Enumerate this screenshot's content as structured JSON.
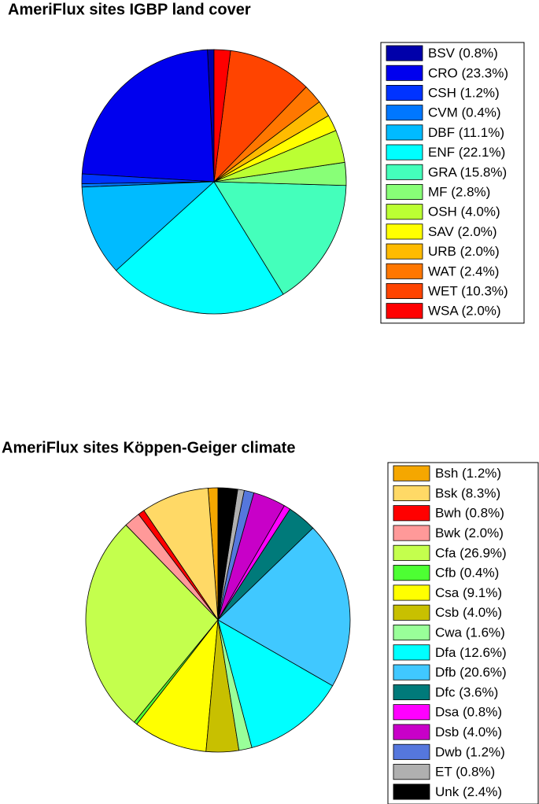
{
  "chart_data": [
    {
      "type": "pie",
      "title": "AmeriFlux sites IGBP land cover",
      "categories": [
        "BSV (0.8%)",
        "CRO (23.3%)",
        "CSH (1.2%)",
        "CVM (0.4%)",
        "DBF (11.1%)",
        "ENF (22.1%)",
        "GRA (15.8%)",
        "MF (2.8%)",
        "OSH (4.0%)",
        "SAV (2.0%)",
        "URB (2.0%)",
        "WAT (2.4%)",
        "WET (10.3%)",
        "WSA (2.0%)"
      ],
      "values": [
        0.8,
        23.3,
        1.2,
        0.4,
        11.1,
        22.1,
        15.8,
        2.8,
        4.0,
        2.0,
        2.0,
        2.4,
        10.3,
        2.0
      ],
      "colors": [
        "#0000aa",
        "#0000ee",
        "#0033ff",
        "#0077ff",
        "#00bbff",
        "#00ffff",
        "#44ffbb",
        "#88ff77",
        "#bbff33",
        "#ffff00",
        "#ffbb00",
        "#ff7700",
        "#ff4400",
        "#ff0000"
      ]
    },
    {
      "type": "pie",
      "title": "AmeriFlux sites Köppen-Geiger climate",
      "categories": [
        "Bsh (1.2%)",
        "Bsk (8.3%)",
        "Bwh (0.8%)",
        "Bwk (2.0%)",
        "Cfa (26.9%)",
        "Cfb (0.4%)",
        "Csa (9.1%)",
        "Csb (4.0%)",
        "Cwa (1.6%)",
        "Dfa (12.6%)",
        "Dfb (20.6%)",
        "Dfc (3.6%)",
        "Dsa (0.8%)",
        "Dsb (4.0%)",
        "Dwb (1.2%)",
        "ET (0.8%)",
        "Unk (2.4%)"
      ],
      "values": [
        1.2,
        8.3,
        0.8,
        2.0,
        26.9,
        0.4,
        9.1,
        4.0,
        1.6,
        12.6,
        20.6,
        3.6,
        0.8,
        4.0,
        1.2,
        0.8,
        2.4
      ],
      "colors": [
        "#f5a700",
        "#ffd966",
        "#ff0000",
        "#ff9999",
        "#c4ff4d",
        "#4dff33",
        "#ffff00",
        "#c8c000",
        "#99ff99",
        "#00ffff",
        "#40c8ff",
        "#007a7a",
        "#ff00ff",
        "#c800c8",
        "#5577dd",
        "#b0b0b0",
        "#000000"
      ]
    }
  ]
}
